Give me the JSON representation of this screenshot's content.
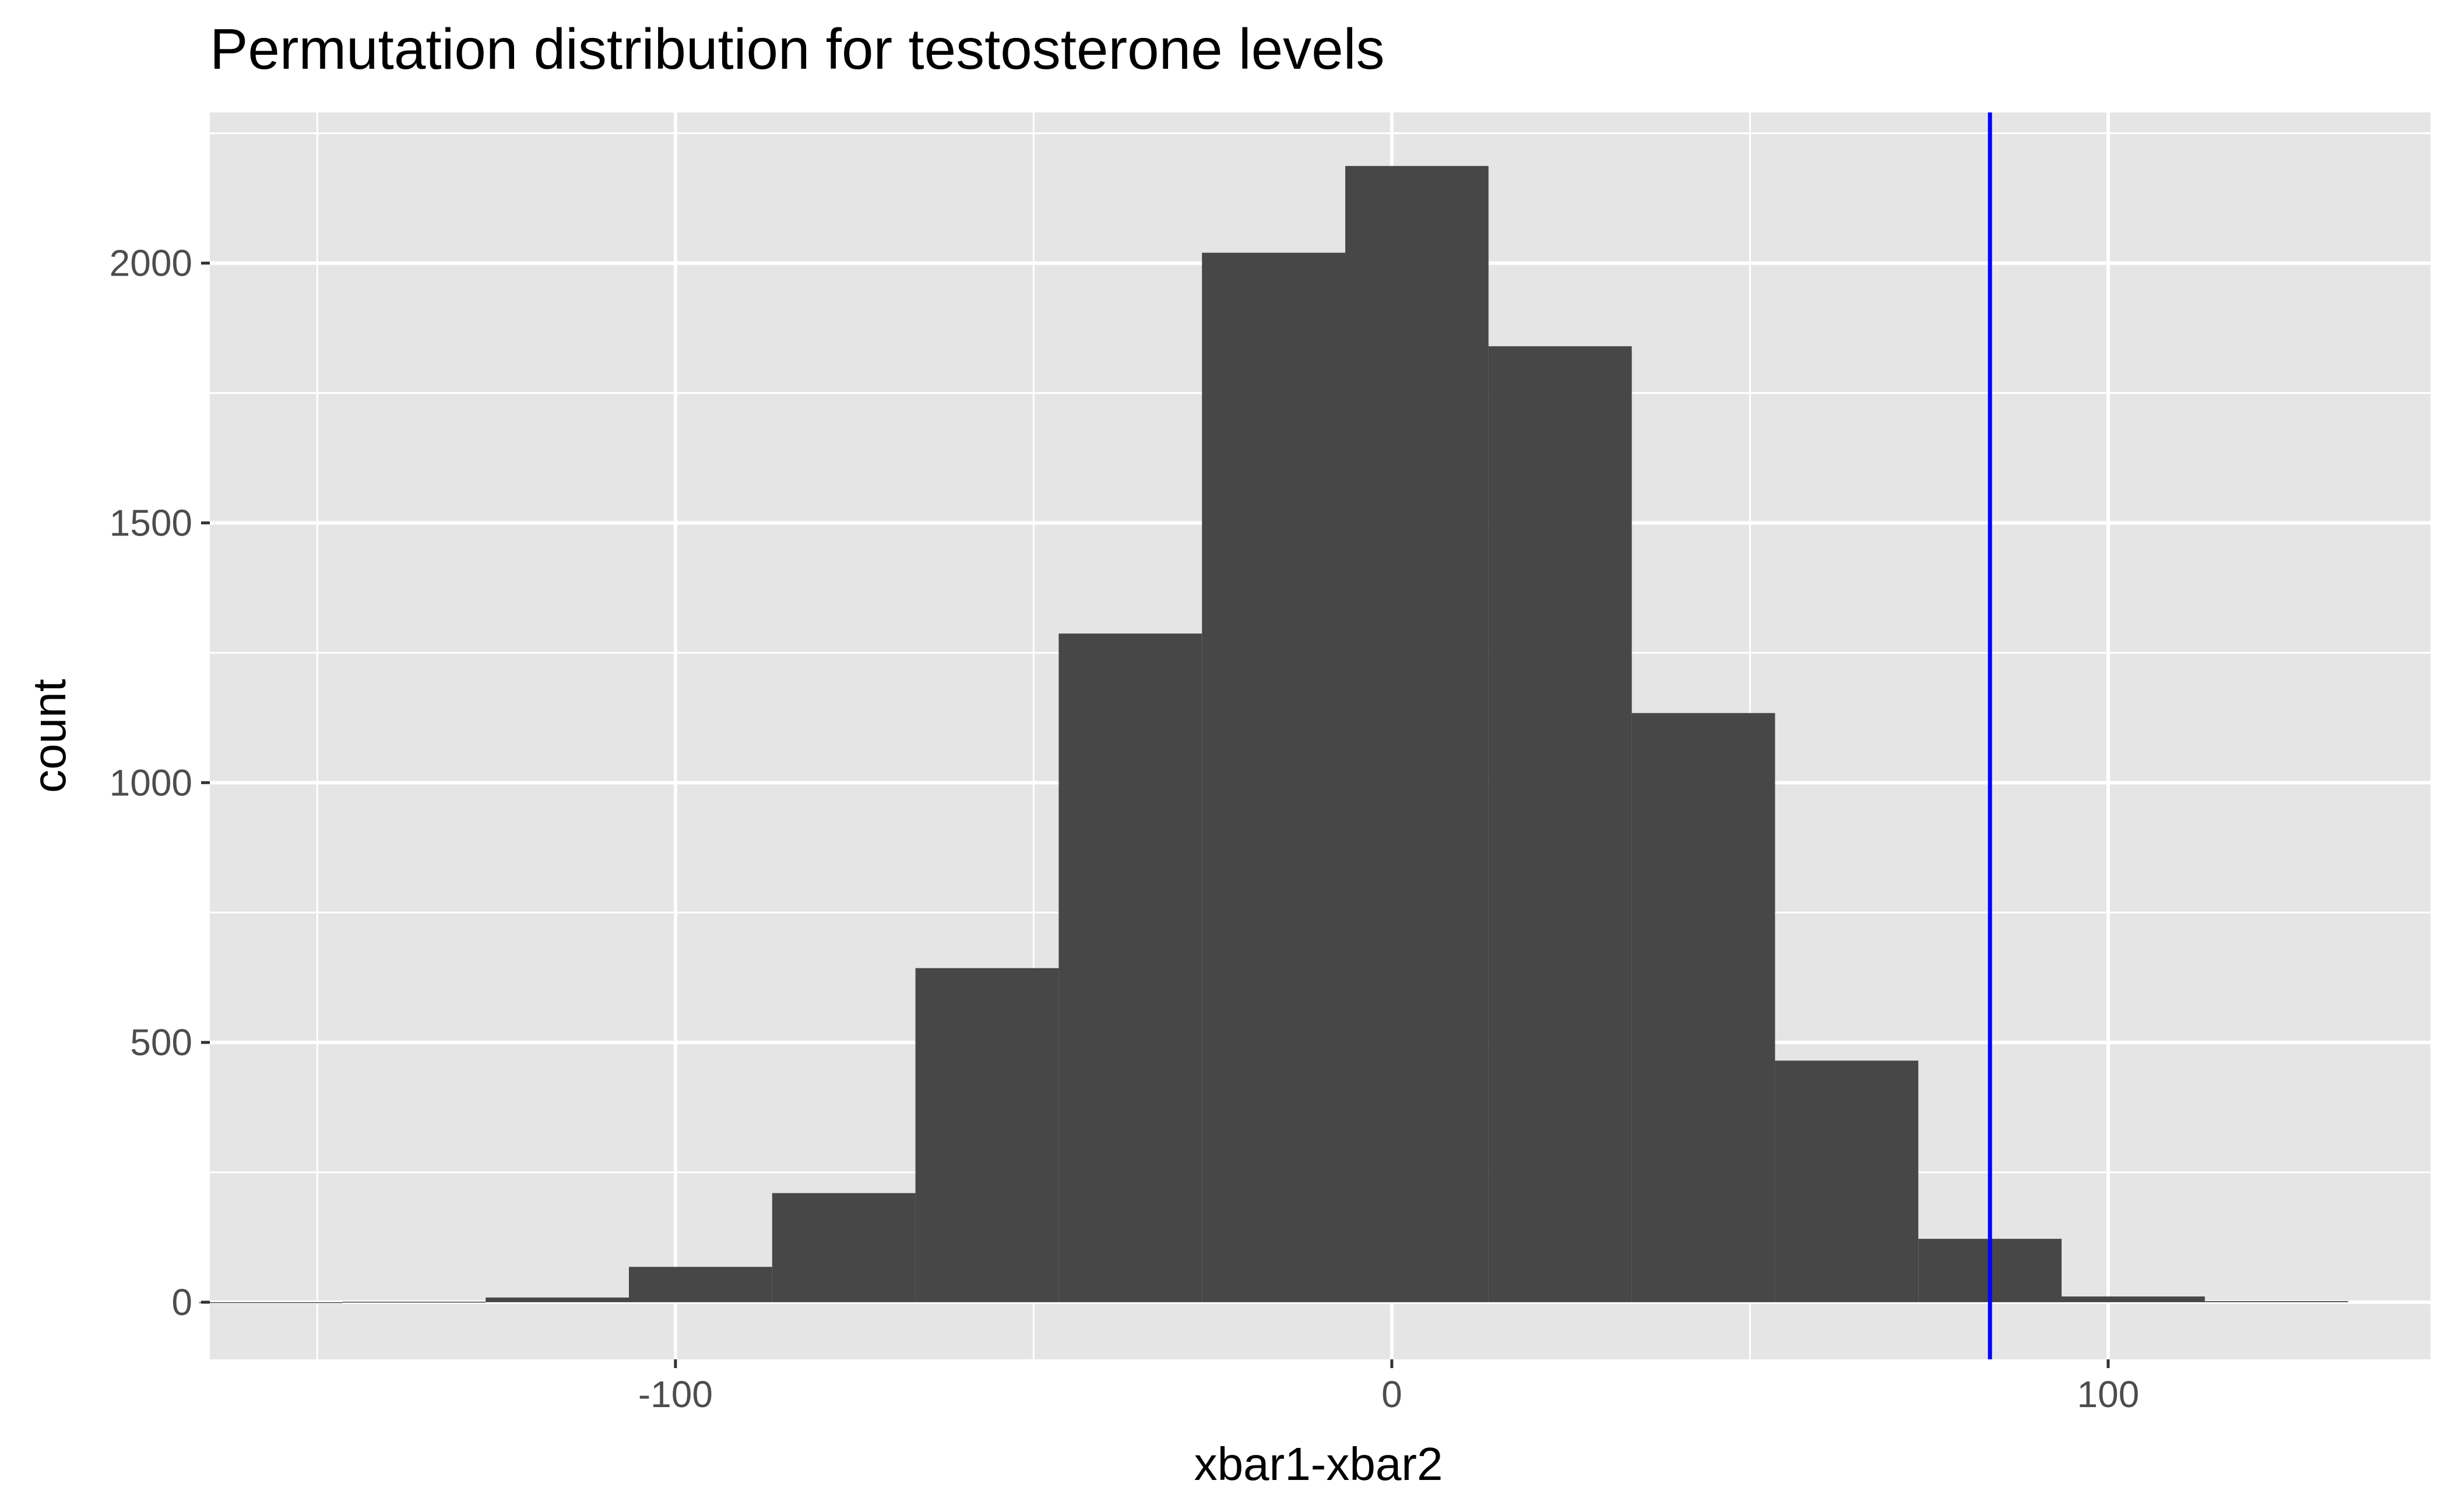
{
  "chart_data": {
    "type": "bar",
    "title": "Permutation distribution for testosterone levels",
    "xlabel": "xbar1-xbar2",
    "ylabel": "count",
    "xlim": [
      -165,
      145
    ],
    "ylim": [
      -110,
      2290
    ],
    "x_ticks": [
      -100,
      0,
      100
    ],
    "x_tick_labels": [
      "-100",
      "0",
      "100"
    ],
    "y_ticks": [
      0,
      500,
      1000,
      1500,
      2000
    ],
    "y_tick_labels": [
      "0",
      "500",
      "1000",
      "1500",
      "2000"
    ],
    "grid": true,
    "bins": [
      {
        "x0": -166.5,
        "x1": -146.5,
        "count": 0
      },
      {
        "x0": -146.5,
        "x1": -126.5,
        "count": 1
      },
      {
        "x0": -126.5,
        "x1": -106.5,
        "count": 9
      },
      {
        "x0": -106.5,
        "x1": -86.5,
        "count": 68
      },
      {
        "x0": -86.5,
        "x1": -66.5,
        "count": 210
      },
      {
        "x0": -66.5,
        "x1": -46.5,
        "count": 643
      },
      {
        "x0": -46.5,
        "x1": -26.5,
        "count": 1287
      },
      {
        "x0": -26.5,
        "x1": -6.5,
        "count": 2020
      },
      {
        "x0": -6.5,
        "x1": 13.5,
        "count": 2187
      },
      {
        "x0": 13.5,
        "x1": 33.5,
        "count": 1840
      },
      {
        "x0": 33.5,
        "x1": 53.5,
        "count": 1134
      },
      {
        "x0": 53.5,
        "x1": 73.5,
        "count": 465
      },
      {
        "x0": 73.5,
        "x1": 93.5,
        "count": 122
      },
      {
        "x0": 93.5,
        "x1": 113.5,
        "count": 11
      },
      {
        "x0": 113.5,
        "x1": 133.5,
        "count": 2
      }
    ],
    "vline": {
      "x": 83.5,
      "color": "#0000ff"
    },
    "bar_color": "#474747",
    "panel_color": "#e5e5e5",
    "grid_color": "#ffffff"
  }
}
